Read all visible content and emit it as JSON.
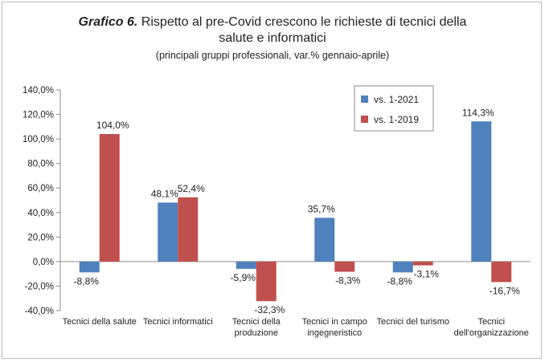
{
  "title": {
    "prefix": "Grafico 6.",
    "line1": " Rispetto al pre-Covid crescono le richieste di tecnici della",
    "line2": "salute e informatici",
    "subtitle": "(principali gruppi professionali, var.% gennaio-aprile)"
  },
  "chart_data": {
    "type": "bar",
    "categories": [
      [
        "Tecnici della salute"
      ],
      [
        "Tecnici informatici"
      ],
      [
        "Tecnici della",
        "produzione"
      ],
      [
        "Tecnici in campo",
        "ingegneristico"
      ],
      [
        "Tecnici del turismo"
      ],
      [
        "Tecnici",
        "dell'organizzazione"
      ]
    ],
    "series": [
      {
        "name": "vs. 1-2021",
        "color": "#4f81bd",
        "values": [
          -8.8,
          48.1,
          -5.9,
          35.7,
          -8.8,
          114.3
        ],
        "labels": [
          "-8,8%",
          "48,1%",
          "-5,9%",
          "35,7%",
          "-8,8%",
          "114,3%"
        ]
      },
      {
        "name": "vs. 1-2019",
        "color": "#c0504d",
        "values": [
          104.0,
          52.4,
          -32.3,
          -8.3,
          -3.1,
          -16.7
        ],
        "labels": [
          "104,0%",
          "52,4%",
          "-32,3%",
          "-8,3%",
          "-3,1%",
          "-16,7%"
        ]
      }
    ],
    "ylim": [
      -40,
      140
    ],
    "yticks": [
      -40,
      -20,
      0,
      20,
      40,
      60,
      80,
      100,
      120,
      140
    ],
    "ytick_labels": [
      "-40,0%",
      "-20,0%",
      "0,0%",
      "20,0%",
      "40,0%",
      "60,0%",
      "80,0%",
      "100,0%",
      "120,0%",
      "140,0%"
    ],
    "grid": false,
    "legend_position": "top-center-right"
  }
}
